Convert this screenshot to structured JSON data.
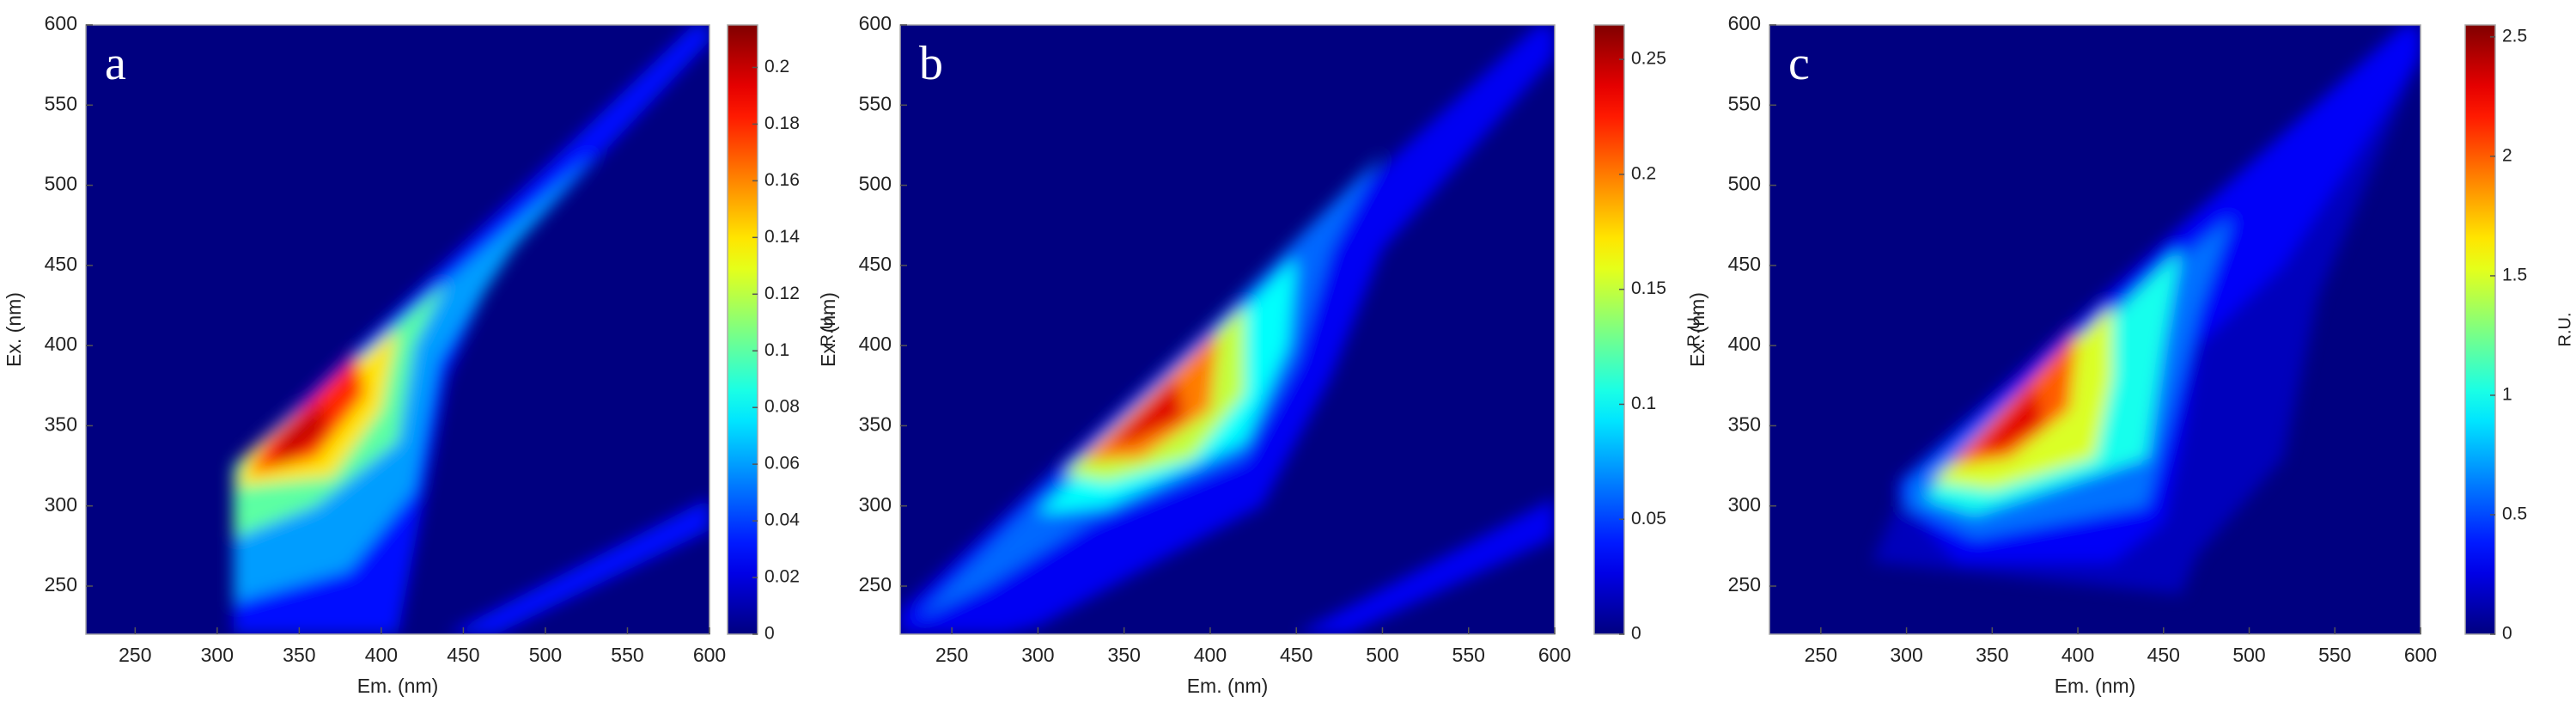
{
  "chart_data": [
    {
      "type": "contour",
      "colormap": "jet",
      "panel_label": "a",
      "x_label": "Em. (nm)",
      "y_label": "Ex. (nm)",
      "colorbar_label": "R.U.",
      "xlim": [
        220,
        600
      ],
      "ylim": [
        220,
        600
      ],
      "xticks": [
        250,
        300,
        350,
        400,
        450,
        500,
        550,
        600
      ],
      "yticks": [
        250,
        300,
        350,
        400,
        450,
        500,
        550,
        600
      ],
      "clim": [
        0,
        0.215
      ],
      "cticks": [
        0,
        0.02,
        0.04,
        0.06,
        0.08,
        0.1,
        0.12,
        0.14,
        0.16,
        0.18,
        0.2
      ],
      "contours": [
        {
          "level": 0.03,
          "x": [
            310,
            310,
            590,
            600,
            600,
            470,
            440,
            425,
            410
          ],
          "y": [
            220,
            325,
            600,
            600,
            590,
            450,
            380,
            300,
            220
          ]
        },
        {
          "level": 0.03,
          "x": [
            440,
            600,
            600,
            470
          ],
          "y": [
            220,
            305,
            285,
            220
          ]
        },
        {
          "level": 0.06,
          "x": [
            310,
            310,
            530,
            480,
            435,
            420,
            380
          ],
          "y": [
            240,
            325,
            520,
            460,
            390,
            310,
            260
          ]
        },
        {
          "level": 0.1,
          "x": [
            310,
            310,
            440,
            420,
            410,
            360
          ],
          "y": [
            280,
            325,
            440,
            400,
            340,
            300
          ]
        },
        {
          "level": 0.14,
          "x": [
            312,
            318,
            410,
            400,
            370
          ],
          "y": [
            312,
            332,
            410,
            360,
            318
          ]
        },
        {
          "level": 0.18,
          "x": [
            320,
            330,
            385,
            390,
            360
          ],
          "y": [
            320,
            340,
            395,
            370,
            330
          ]
        },
        {
          "level": 0.2,
          "x": [
            335,
            340,
            365,
            365
          ],
          "y": [
            325,
            345,
            365,
            345
          ]
        }
      ]
    },
    {
      "type": "contour",
      "colormap": "jet",
      "panel_label": "b",
      "x_label": "Em. (nm)",
      "y_label": "Ex. (nm)",
      "colorbar_label": "R.U.",
      "xlim": [
        220,
        600
      ],
      "ylim": [
        220,
        600
      ],
      "xticks": [
        250,
        300,
        350,
        400,
        450,
        500,
        550,
        600
      ],
      "yticks": [
        250,
        300,
        350,
        400,
        450,
        500,
        550,
        600
      ],
      "clim": [
        0,
        0.265
      ],
      "cticks": [
        0,
        0.05,
        0.1,
        0.15,
        0.2,
        0.25
      ],
      "contours": [
        {
          "level": 0.03,
          "x": [
            220,
            220,
            590,
            600,
            600,
            500,
            470,
            430,
            360,
            300,
            280
          ],
          "y": [
            220,
            235,
            600,
            600,
            580,
            460,
            380,
            300,
            260,
            225,
            220
          ]
        },
        {
          "level": 0.03,
          "x": [
            450,
            600,
            600,
            480
          ],
          "y": [
            220,
            305,
            280,
            220
          ]
        },
        {
          "level": 0.06,
          "x": [
            230,
            300,
            500,
            470,
            450,
            420,
            330,
            270
          ],
          "y": [
            230,
            305,
            520,
            460,
            390,
            330,
            290,
            250
          ]
        },
        {
          "level": 0.1,
          "x": [
            300,
            450,
            445,
            420,
            340
          ],
          "y": [
            295,
            455,
            400,
            340,
            300
          ]
        },
        {
          "level": 0.15,
          "x": [
            315,
            420,
            420,
            390,
            340
          ],
          "y": [
            320,
            425,
            370,
            330,
            315
          ]
        },
        {
          "level": 0.2,
          "x": [
            325,
            405,
            400,
            360
          ],
          "y": [
            328,
            410,
            360,
            330
          ]
        },
        {
          "level": 0.24,
          "x": [
            340,
            380,
            385,
            355
          ],
          "y": [
            338,
            380,
            355,
            340
          ]
        }
      ]
    },
    {
      "type": "contour",
      "colormap": "jet",
      "panel_label": "c",
      "x_label": "Em. (nm)",
      "y_label": "Ex. (nm)",
      "colorbar_label": "R.U.",
      "xlim": [
        220,
        600
      ],
      "ylim": [
        220,
        600
      ],
      "xticks": [
        250,
        300,
        350,
        400,
        450,
        500,
        550,
        600
      ],
      "yticks": [
        250,
        300,
        350,
        400,
        450,
        500,
        550,
        600
      ],
      "clim": [
        0,
        2.55
      ],
      "cticks": [
        0,
        0.5,
        1,
        1.5,
        2,
        2.5
      ],
      "contours": [
        {
          "level": 0.15,
          "x": [
            280,
            300,
            590,
            600,
            600,
            540,
            520,
            470,
            460
          ],
          "y": [
            265,
            315,
            600,
            600,
            580,
            430,
            330,
            270,
            245
          ]
        },
        {
          "level": 0.3,
          "x": [
            295,
            295,
            590,
            600,
            600,
            520,
            470,
            460,
            450,
            420,
            330
          ],
          "y": [
            305,
            315,
            600,
            600,
            580,
            450,
            400,
            340,
            290,
            265,
            265
          ]
        },
        {
          "level": 0.6,
          "x": [
            300,
            300,
            490,
            470,
            455,
            440,
            340
          ],
          "y": [
            300,
            315,
            480,
            420,
            360,
            300,
            280
          ]
        },
        {
          "level": 1,
          "x": [
            310,
            460,
            450,
            440,
            340
          ],
          "y": [
            305,
            460,
            400,
            330,
            295
          ]
        },
        {
          "level": 1.5,
          "x": [
            315,
            420,
            420,
            410,
            350
          ],
          "y": [
            315,
            425,
            380,
            330,
            310
          ]
        },
        {
          "level": 2,
          "x": [
            325,
            400,
            395,
            360
          ],
          "y": [
            325,
            410,
            360,
            330
          ]
        },
        {
          "level": 2.3,
          "x": [
            340,
            375,
            380,
            355
          ],
          "y": [
            335,
            375,
            350,
            335
          ]
        }
      ]
    }
  ]
}
